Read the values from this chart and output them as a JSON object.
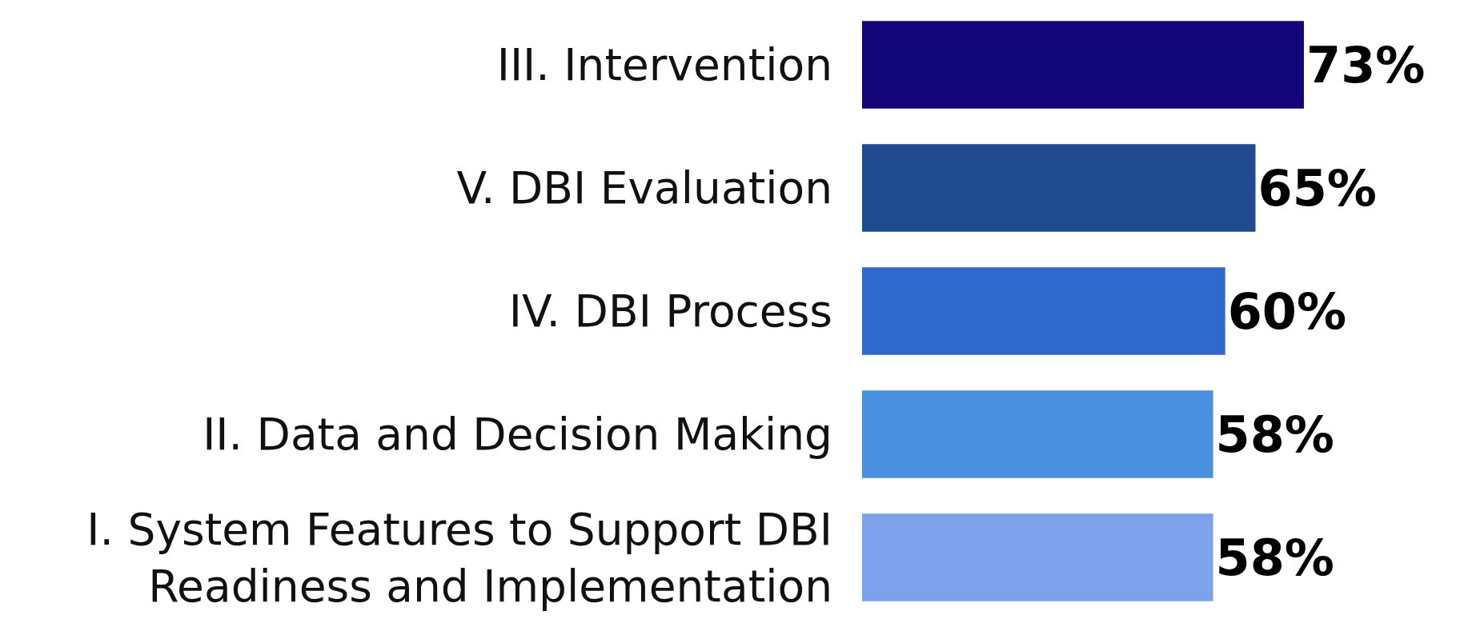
{
  "chart_data": {
    "type": "bar",
    "orientation": "horizontal",
    "categories": [
      "III. Intervention",
      "V. DBI Evaluation",
      "IV. DBI Process",
      "II. Data and Decision Making",
      "I. System Features to Support DBI Readiness and Implementation"
    ],
    "values": [
      73,
      65,
      60,
      58,
      58
    ],
    "value_labels": [
      "73%",
      "65%",
      "60%",
      "58%",
      "58%"
    ],
    "colors": [
      "#13057a",
      "#1f4a8f",
      "#2f69cc",
      "#4a90e0",
      "#7ea1ec"
    ],
    "tick_labels": "y",
    "grid": false,
    "legend": false
  }
}
